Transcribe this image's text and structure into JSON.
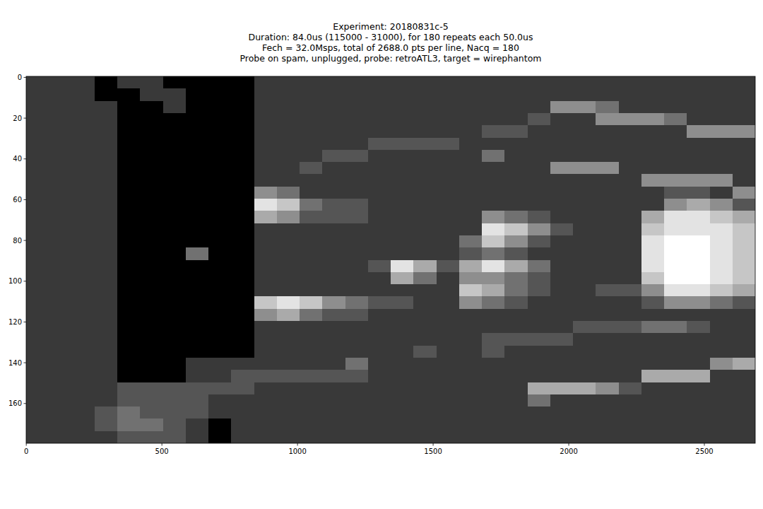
{
  "chart_data": {
    "type": "heatmap",
    "title": "Experiment: 20180831c-5",
    "subtitle": [
      "Duration: 84.0us (115000 - 31000), for 180 repeats each 50.0us",
      "Fech = 32.0Msps, total of 2688.0 pts per line, Nacq = 180",
      "Probe on spam, unplugged, probe: retroATL3, target = wirephantom"
    ],
    "xlim": [
      -0.5,
      2687.5
    ],
    "xticks": [
      0,
      500,
      1000,
      1500,
      2000,
      2500
    ],
    "ylim": [
      179.5,
      -0.5
    ],
    "yticks": [
      0,
      20,
      40,
      60,
      80,
      100,
      120,
      140,
      160
    ],
    "cells": [
      [
        2,
        2,
        2,
        0,
        2,
        2,
        0,
        0,
        0,
        0,
        2,
        2,
        2,
        2,
        2,
        2,
        2,
        2,
        2,
        2,
        2,
        2,
        2,
        2,
        2,
        2,
        2,
        2,
        2,
        2,
        2,
        2
      ],
      [
        2,
        2,
        2,
        0,
        0,
        2,
        2,
        0,
        0,
        0,
        2,
        2,
        2,
        2,
        2,
        2,
        2,
        2,
        2,
        2,
        2,
        2,
        2,
        2,
        2,
        2,
        2,
        2,
        2,
        2,
        2,
        2
      ],
      [
        2,
        2,
        2,
        2,
        0,
        0,
        2,
        0,
        0,
        0,
        2,
        2,
        2,
        2,
        2,
        2,
        2,
        2,
        2,
        2,
        2,
        2,
        2,
        5,
        5,
        4,
        2,
        2,
        2,
        2,
        2,
        2
      ],
      [
        2,
        2,
        2,
        2,
        0,
        0,
        0,
        0,
        0,
        0,
        2,
        2,
        2,
        2,
        2,
        2,
        2,
        2,
        2,
        2,
        2,
        2,
        3,
        2,
        2,
        5,
        5,
        5,
        4,
        2,
        2,
        2
      ],
      [
        2,
        2,
        2,
        2,
        0,
        0,
        0,
        0,
        0,
        0,
        2,
        2,
        2,
        2,
        2,
        2,
        2,
        2,
        2,
        2,
        3,
        3,
        2,
        2,
        2,
        2,
        2,
        2,
        2,
        5,
        5,
        5
      ],
      [
        2,
        2,
        2,
        2,
        0,
        0,
        0,
        0,
        0,
        0,
        2,
        2,
        2,
        2,
        2,
        3,
        3,
        3,
        3,
        2,
        2,
        2,
        2,
        2,
        2,
        2,
        2,
        2,
        2,
        2,
        2,
        2
      ],
      [
        2,
        2,
        2,
        2,
        0,
        0,
        0,
        0,
        0,
        0,
        2,
        2,
        2,
        3,
        3,
        2,
        2,
        2,
        2,
        2,
        4,
        2,
        2,
        2,
        2,
        2,
        2,
        2,
        2,
        2,
        2,
        2
      ],
      [
        2,
        2,
        2,
        2,
        0,
        0,
        0,
        0,
        0,
        0,
        2,
        2,
        3,
        2,
        2,
        2,
        2,
        2,
        2,
        2,
        2,
        2,
        2,
        5,
        5,
        5,
        2,
        2,
        2,
        2,
        2,
        2
      ],
      [
        2,
        2,
        2,
        2,
        0,
        0,
        0,
        0,
        0,
        0,
        2,
        2,
        2,
        2,
        2,
        2,
        2,
        2,
        2,
        2,
        2,
        2,
        2,
        2,
        2,
        2,
        2,
        5,
        5,
        5,
        5,
        2
      ],
      [
        2,
        2,
        2,
        2,
        0,
        0,
        0,
        0,
        0,
        0,
        5,
        4,
        2,
        2,
        2,
        2,
        2,
        2,
        2,
        2,
        2,
        2,
        2,
        2,
        2,
        2,
        2,
        2,
        3,
        3,
        2,
        5
      ],
      [
        2,
        2,
        2,
        2,
        0,
        0,
        0,
        0,
        0,
        0,
        8,
        7,
        4,
        3,
        3,
        2,
        2,
        2,
        2,
        2,
        2,
        2,
        2,
        2,
        2,
        2,
        2,
        2,
        5,
        6,
        5,
        3
      ],
      [
        2,
        2,
        2,
        2,
        0,
        0,
        0,
        0,
        0,
        0,
        6,
        5,
        3,
        3,
        3,
        2,
        2,
        2,
        2,
        2,
        5,
        4,
        3,
        2,
        2,
        2,
        2,
        6,
        8,
        8,
        7,
        6
      ],
      [
        2,
        2,
        2,
        2,
        0,
        0,
        0,
        0,
        0,
        0,
        2,
        2,
        2,
        2,
        2,
        2,
        2,
        2,
        2,
        2,
        8,
        7,
        5,
        3,
        2,
        2,
        2,
        7,
        8,
        8,
        8,
        7
      ],
      [
        2,
        2,
        2,
        2,
        0,
        0,
        0,
        0,
        0,
        0,
        2,
        2,
        2,
        2,
        2,
        2,
        2,
        2,
        2,
        4,
        7,
        5,
        3,
        2,
        2,
        2,
        2,
        8,
        9,
        9,
        8,
        7
      ],
      [
        2,
        2,
        2,
        2,
        0,
        0,
        0,
        4,
        0,
        0,
        2,
        2,
        2,
        2,
        2,
        2,
        2,
        2,
        2,
        3,
        4,
        3,
        2,
        2,
        2,
        2,
        2,
        8,
        9,
        9,
        8,
        7
      ],
      [
        2,
        2,
        2,
        2,
        0,
        0,
        0,
        0,
        0,
        0,
        2,
        2,
        2,
        2,
        2,
        3,
        8,
        6,
        3,
        6,
        8,
        6,
        4,
        2,
        2,
        2,
        2,
        8,
        9,
        9,
        8,
        7
      ],
      [
        2,
        2,
        2,
        2,
        0,
        0,
        0,
        0,
        0,
        0,
        2,
        2,
        2,
        2,
        2,
        2,
        6,
        4,
        2,
        5,
        5,
        4,
        3,
        2,
        2,
        2,
        2,
        7,
        9,
        9,
        8,
        7
      ],
      [
        2,
        2,
        2,
        2,
        0,
        0,
        0,
        0,
        0,
        0,
        2,
        2,
        2,
        2,
        2,
        2,
        2,
        2,
        2,
        7,
        6,
        4,
        3,
        2,
        2,
        3,
        3,
        5,
        8,
        8,
        7,
        6
      ],
      [
        2,
        2,
        2,
        2,
        0,
        0,
        0,
        0,
        0,
        0,
        7,
        8,
        7,
        5,
        4,
        3,
        3,
        2,
        2,
        5,
        4,
        3,
        2,
        2,
        2,
        2,
        2,
        3,
        5,
        5,
        4,
        3
      ],
      [
        2,
        2,
        2,
        2,
        0,
        0,
        0,
        0,
        0,
        0,
        5,
        6,
        4,
        3,
        3,
        2,
        2,
        2,
        2,
        2,
        2,
        2,
        2,
        2,
        2,
        2,
        2,
        2,
        2,
        2,
        2,
        2
      ],
      [
        2,
        2,
        2,
        2,
        0,
        0,
        0,
        0,
        0,
        0,
        2,
        2,
        2,
        2,
        2,
        2,
        2,
        2,
        2,
        2,
        2,
        2,
        2,
        2,
        3,
        3,
        3,
        4,
        4,
        3,
        2,
        2
      ],
      [
        2,
        2,
        2,
        2,
        0,
        0,
        0,
        0,
        0,
        0,
        2,
        2,
        2,
        2,
        2,
        2,
        2,
        2,
        2,
        2,
        3,
        3,
        3,
        3,
        2,
        2,
        2,
        2,
        2,
        2,
        2,
        2
      ],
      [
        2,
        2,
        2,
        2,
        0,
        0,
        0,
        0,
        0,
        0,
        2,
        2,
        2,
        2,
        2,
        2,
        2,
        3,
        2,
        2,
        3,
        2,
        2,
        2,
        2,
        2,
        2,
        2,
        2,
        2,
        2,
        2
      ],
      [
        2,
        2,
        2,
        2,
        0,
        0,
        0,
        2,
        2,
        2,
        2,
        2,
        2,
        2,
        4,
        2,
        2,
        2,
        2,
        2,
        2,
        2,
        2,
        2,
        2,
        2,
        2,
        2,
        2,
        2,
        5,
        6
      ],
      [
        2,
        2,
        2,
        2,
        0,
        0,
        0,
        2,
        2,
        3,
        3,
        3,
        3,
        3,
        3,
        2,
        2,
        2,
        2,
        2,
        2,
        2,
        2,
        2,
        2,
        2,
        2,
        6,
        6,
        6,
        2,
        2
      ],
      [
        2,
        2,
        2,
        2,
        3,
        3,
        3,
        3,
        3,
        3,
        2,
        2,
        2,
        2,
        2,
        2,
        2,
        2,
        2,
        2,
        2,
        2,
        6,
        6,
        6,
        5,
        3,
        2,
        2,
        2,
        2,
        2
      ],
      [
        2,
        2,
        2,
        2,
        3,
        3,
        3,
        3,
        2,
        2,
        2,
        2,
        2,
        2,
        2,
        2,
        2,
        2,
        2,
        2,
        2,
        2,
        4,
        2,
        2,
        2,
        2,
        2,
        2,
        2,
        2,
        2
      ],
      [
        2,
        2,
        2,
        3,
        4,
        3,
        3,
        3,
        2,
        2,
        2,
        2,
        2,
        2,
        2,
        2,
        2,
        2,
        2,
        2,
        2,
        2,
        2,
        2,
        2,
        2,
        2,
        2,
        2,
        2,
        2,
        2
      ],
      [
        2,
        2,
        2,
        3,
        4,
        4,
        3,
        2,
        0,
        2,
        2,
        2,
        2,
        2,
        2,
        2,
        2,
        2,
        2,
        2,
        2,
        2,
        2,
        2,
        2,
        2,
        2,
        2,
        2,
        2,
        2,
        2
      ],
      [
        2,
        2,
        2,
        2,
        3,
        3,
        3,
        2,
        0,
        2,
        2,
        2,
        2,
        2,
        2,
        2,
        2,
        2,
        2,
        2,
        2,
        2,
        2,
        2,
        2,
        2,
        2,
        2,
        2,
        2,
        2,
        2
      ]
    ]
  }
}
